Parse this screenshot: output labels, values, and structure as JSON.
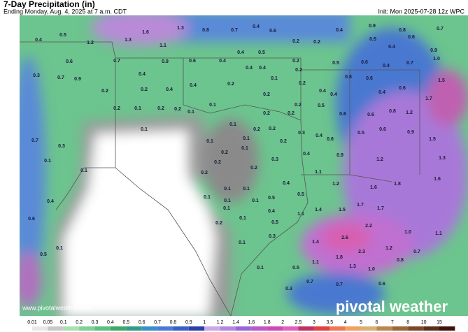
{
  "header": {
    "title": "7-Day Precipitation (in)",
    "subtitle": "Ending Monday, Aug. 4, 2025 at 7 a.m. CDT",
    "init": "Init: Mon 2025-07-28 12z WPC"
  },
  "footer": {
    "url": "www.pivotalweather.com",
    "logo": "pivotal weather"
  },
  "colorbar": {
    "labels": [
      "0.01",
      "0.05",
      "0.1",
      "0.2",
      "0.3",
      "0.4",
      "0.5",
      "0.6",
      "0.7",
      "0.8",
      "0.9",
      "1",
      "1.2",
      "1.4",
      "1.6",
      "1.8",
      "2",
      "2.5",
      "3",
      "3.5",
      "4",
      "5",
      "6",
      "7",
      "8",
      "10",
      "15"
    ]
  },
  "map": {
    "labels": [
      "0.5",
      "0.4",
      "1.2",
      "1.6",
      "1.3",
      "1.3",
      "0.8",
      "0.7",
      "0.4",
      "0.6",
      "1.1",
      "0.2",
      "0.2",
      "0.4",
      "0.9",
      "0.8",
      "0.7",
      "0.5",
      "0.6",
      "0.4",
      "0.9",
      "1.0",
      "0.3",
      "0.6",
      "0.7",
      "0.9",
      "0.7",
      "0.9",
      "0.6",
      "0.4",
      "0.4",
      "0.5",
      "0.4",
      "0.4",
      "0.2",
      "0.2",
      "0.5",
      "0.6",
      "0.4",
      "0.7",
      "1.5",
      "0.4",
      "0.2",
      "0.2",
      "0.4",
      "0.4",
      "0.2",
      "0.1",
      "0.2",
      "0.2",
      "0.4",
      "0.8",
      "0.6",
      "0.4",
      "0.6",
      "1.7",
      "0.4",
      "0.5",
      "0.6",
      "0.6",
      "0.8",
      "1.2",
      "0.2",
      "0.2",
      "0.2",
      "0.1",
      "0.2",
      "0.1",
      "0.2",
      "0.2",
      "0.1",
      "0.1",
      "0.1",
      "0.2",
      "0.2",
      "0.3",
      "0.4",
      "0.6",
      "0.5",
      "0.6",
      "0.9",
      "1.5",
      "0.1",
      "0.1",
      "0.1",
      "0.2",
      "0.4",
      "0.9",
      "1.2",
      "1.3",
      "0.2",
      "0.2",
      "0.2",
      "0.2",
      "0.3",
      "1.1",
      "1.2",
      "1.8",
      "1.6",
      "1.6",
      "0.1",
      "0.1",
      "0.7",
      "0.3",
      "0.1",
      "0.1",
      "0.4",
      "0.5",
      "0.1",
      "0.1",
      "0.1",
      "0.1",
      "0.5",
      "0.4",
      "0.1",
      "0.2",
      "0.5",
      "0.4",
      "0.6",
      "0.1",
      "0.5",
      "1.1",
      "1.4",
      "1.5",
      "1.7",
      "1.7",
      "2.2",
      "1.0",
      "1.1",
      "2.6",
      "1.4",
      "2.3",
      "1.2",
      "0.7",
      "1.8",
      "1.1",
      "1.3",
      "1.0",
      "0.8",
      "0.3",
      "0.1",
      "0.1",
      "0.5",
      "0.3",
      "0.7",
      "0.7",
      "0.6"
    ]
  }
}
